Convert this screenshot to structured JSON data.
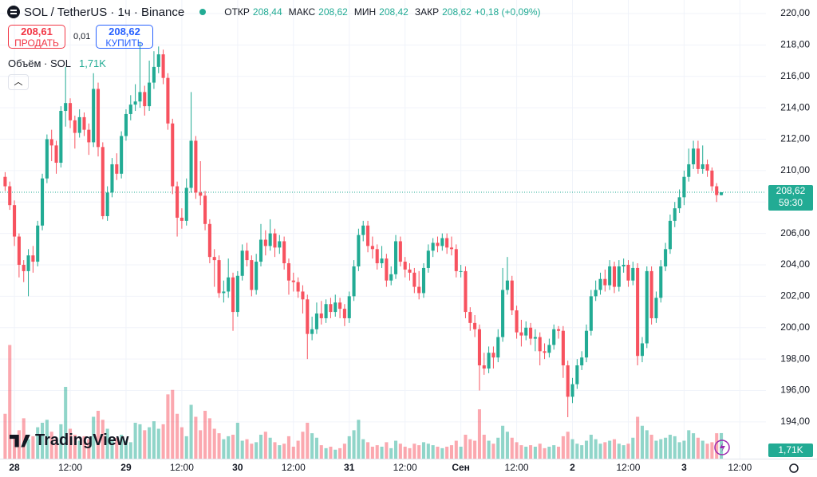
{
  "chart_data": {
    "type": "candlestick",
    "title": "SOL / TetherUS · 1ч · Binance",
    "header": {
      "ohlc": [
        {
          "label": "ОТКР",
          "value": "208,44"
        },
        {
          "label": "МАКС",
          "value": "208,62"
        },
        {
          "label": "МИН",
          "value": "208,42"
        },
        {
          "label": "ЗАКР",
          "value": "208,62"
        }
      ],
      "change": "+0,18 (+0,09%)",
      "sell_price": "208,61",
      "sell_label": "ПРОДАТЬ",
      "spread": "0,01",
      "buy_price": "208,62",
      "buy_label": "КУПИТЬ",
      "volume_title": "Объём · SOL",
      "brand": "TradingView",
      "last_price_label": "208,62",
      "countdown": "59:30",
      "volume_label": "1,71K"
    },
    "colors": {
      "up": "#22ab94",
      "down": "#f7525f"
    },
    "open": [
      209.6,
      209.0,
      207.8,
      205.8,
      204.0,
      203.6,
      204.6,
      204.2,
      206.5,
      209.5,
      212.0,
      211.6,
      210.5,
      213.8,
      214.3,
      213.2,
      212.4,
      213.4,
      212.6,
      211.8,
      215.2,
      211.5,
      207.1,
      208.6,
      210.4,
      209.8,
      212.2,
      213.6,
      214.2,
      214.4,
      215.0,
      214.1,
      215.6,
      216.6,
      217.4,
      215.9,
      213.0,
      209.0,
      207.0,
      206.8,
      208.9,
      211.9,
      208.6,
      208.4,
      206.6,
      204.5,
      204.3,
      202.2,
      202.3,
      203.2,
      201.0,
      203.3,
      204.9,
      204.3,
      202.4,
      204.2,
      205.6,
      205.2,
      206.0,
      205.1,
      205.5,
      204.1,
      203.0,
      202.9,
      202.3,
      201.8,
      199.6,
      199.9,
      200.9,
      200.6,
      201.5,
      201.0,
      201.6,
      201.2,
      200.6,
      202.0,
      203.9,
      205.9,
      206.5,
      205.2,
      205.0,
      204.1,
      204.4,
      203.0,
      203.4,
      205.5,
      204.2,
      203.7,
      203.5,
      202.6,
      202.2,
      203.8,
      204.9,
      205.4,
      205.2,
      205.7,
      205.1,
      205.0,
      203.6,
      203.6,
      201.0,
      200.3,
      199.9,
      197.6,
      197.4,
      198.4,
      198.1,
      199.4,
      202.4,
      203.0,
      201.1,
      199.7,
      199.5,
      200.0,
      199.3,
      199.4,
      198.5,
      198.4,
      198.9,
      199.9,
      199.8,
      197.6,
      195.6,
      196.4,
      197.6,
      198.1,
      199.8,
      202.0,
      202.4,
      203.1,
      202.7,
      203.9,
      202.6,
      203.9,
      204.0,
      203.0,
      203.8,
      198.2,
      199.0,
      203.6,
      200.6,
      201.9,
      203.9,
      205.0,
      206.8,
      207.6,
      208.3,
      209.6,
      210.4,
      211.4,
      210.1,
      210.4,
      210.0,
      209.0,
      208.44
    ],
    "high": [
      209.9,
      209.3,
      208.1,
      206.0,
      204.3,
      205.0,
      205.2,
      206.8,
      209.8,
      212.3,
      212.6,
      211.9,
      214.1,
      216.6,
      214.6,
      213.5,
      213.9,
      213.7,
      213.0,
      216.2,
      215.6,
      211.8,
      209.0,
      210.8,
      211.1,
      212.5,
      213.9,
      214.8,
      215.5,
      218.2,
      215.4,
      217.0,
      217.6,
      217.9,
      217.7,
      216.2,
      213.3,
      209.3,
      207.6,
      209.5,
      215.0,
      212.2,
      210.6,
      208.7,
      206.9,
      205.0,
      204.6,
      203.0,
      204.4,
      203.5,
      203.6,
      205.3,
      205.4,
      204.6,
      204.7,
      206.6,
      206.2,
      206.9,
      206.3,
      205.9,
      205.8,
      204.4,
      203.5,
      203.2,
      202.7,
      202.1,
      200.7,
      201.6,
      201.7,
      201.8,
      201.9,
      202.1,
      201.9,
      201.5,
      202.3,
      204.3,
      206.3,
      206.8,
      206.8,
      205.8,
      205.3,
      205.2,
      204.7,
      203.9,
      205.9,
      205.8,
      204.5,
      204.1,
      203.8,
      203.6,
      204.1,
      205.3,
      205.7,
      205.8,
      206.0,
      206.0,
      205.8,
      205.3,
      204.0,
      203.9,
      201.3,
      200.8,
      200.2,
      198.4,
      198.8,
      198.8,
      199.9,
      203.8,
      204.5,
      203.3,
      201.4,
      200.5,
      200.4,
      200.3,
      199.9,
      199.7,
      199.0,
      199.3,
      200.2,
      200.1,
      200.1,
      197.9,
      196.8,
      198.0,
      198.5,
      200.2,
      202.4,
      203.0,
      203.5,
      203.7,
      204.3,
      204.2,
      204.3,
      204.4,
      204.3,
      204.2,
      204.1,
      199.4,
      203.9,
      203.9,
      202.3,
      204.3,
      205.4,
      207.2,
      208.0,
      208.8,
      210.0,
      211.4,
      211.9,
      211.9,
      211.6,
      210.7,
      210.2,
      209.2,
      208.62
    ],
    "low": [
      208.7,
      207.5,
      205.2,
      203.2,
      202.9,
      202.0,
      203.5,
      203.9,
      206.2,
      209.2,
      210.6,
      209.8,
      210.2,
      212.8,
      212.7,
      211.4,
      212.1,
      212.2,
      211.0,
      211.5,
      210.9,
      206.9,
      206.8,
      208.3,
      209.4,
      209.5,
      211.9,
      213.2,
      213.8,
      214.0,
      213.5,
      213.8,
      215.2,
      216.2,
      215.5,
      212.6,
      208.5,
      205.8,
      206.3,
      206.5,
      208.6,
      208.2,
      207.8,
      206.2,
      204.1,
      202.6,
      201.9,
      201.6,
      201.9,
      199.8,
      200.7,
      203.0,
      203.9,
      202.0,
      202.1,
      203.9,
      204.6,
      204.9,
      204.5,
      204.7,
      203.7,
      202.1,
      202.3,
      201.9,
      200.9,
      198.0,
      199.2,
      199.6,
      200.2,
      200.3,
      200.6,
      200.7,
      200.6,
      200.1,
      200.3,
      201.7,
      203.6,
      205.5,
      204.8,
      204.4,
      203.7,
      203.8,
      202.6,
      202.7,
      203.1,
      203.9,
      203.2,
      203.0,
      202.2,
      201.8,
      201.9,
      203.5,
      204.5,
      204.8,
      204.9,
      204.7,
      204.6,
      203.2,
      203.2,
      200.6,
      199.8,
      199.4,
      196.0,
      197.0,
      197.1,
      197.4,
      197.8,
      199.1,
      202.1,
      200.8,
      199.3,
      198.8,
      199.2,
      198.9,
      198.5,
      197.6,
      198.0,
      198.1,
      198.6,
      199.3,
      196.8,
      194.3,
      195.2,
      196.1,
      197.3,
      197.8,
      199.5,
      201.7,
      202.1,
      202.3,
      202.4,
      202.2,
      202.3,
      203.5,
      202.6,
      202.7,
      197.6,
      197.8,
      198.7,
      200.2,
      200.3,
      201.6,
      203.6,
      204.7,
      206.4,
      207.3,
      207.8,
      209.3,
      210.1,
      209.8,
      209.8,
      209.6,
      208.7,
      208.0,
      208.42
    ],
    "close": [
      209.0,
      207.8,
      205.8,
      204.0,
      203.6,
      204.6,
      204.2,
      206.5,
      209.5,
      212.0,
      211.6,
      210.5,
      213.8,
      214.3,
      213.2,
      212.4,
      213.4,
      212.6,
      211.8,
      215.2,
      211.5,
      207.1,
      208.6,
      210.4,
      209.8,
      212.2,
      213.6,
      214.2,
      214.4,
      215.0,
      214.1,
      215.6,
      216.6,
      217.4,
      215.9,
      213.0,
      209.0,
      207.0,
      206.8,
      208.9,
      211.9,
      208.6,
      208.4,
      206.6,
      204.5,
      204.3,
      202.2,
      202.3,
      203.2,
      201.0,
      203.3,
      204.9,
      204.3,
      202.4,
      204.2,
      205.6,
      205.2,
      206.0,
      205.1,
      205.5,
      204.1,
      203.0,
      202.9,
      202.3,
      201.8,
      199.6,
      199.9,
      200.9,
      200.6,
      201.5,
      201.0,
      201.6,
      201.2,
      200.6,
      202.0,
      203.9,
      205.9,
      206.5,
      205.2,
      205.0,
      204.1,
      204.4,
      203.0,
      203.4,
      205.5,
      204.2,
      203.7,
      203.5,
      202.6,
      202.2,
      203.8,
      204.9,
      205.4,
      205.2,
      205.7,
      205.1,
      205.0,
      203.6,
      203.6,
      201.0,
      200.3,
      199.9,
      197.6,
      197.4,
      198.4,
      198.1,
      199.4,
      202.4,
      203.0,
      201.1,
      199.7,
      199.5,
      200.0,
      199.3,
      199.4,
      198.5,
      198.4,
      198.9,
      199.9,
      199.8,
      197.6,
      195.6,
      196.4,
      197.6,
      198.1,
      199.8,
      202.0,
      202.4,
      203.1,
      202.7,
      203.9,
      202.6,
      203.9,
      204.0,
      203.0,
      203.8,
      198.2,
      199.0,
      203.6,
      200.6,
      201.9,
      203.9,
      205.0,
      206.8,
      207.6,
      208.3,
      209.6,
      210.4,
      211.4,
      210.1,
      210.4,
      210.0,
      209.0,
      208.44,
      208.62
    ],
    "volume": [
      3.0,
      7.6,
      1.6,
      1.9,
      2.7,
      1.3,
      1.5,
      2.1,
      2.4,
      2.6,
      1.8,
      1.4,
      2.3,
      4.8,
      2.0,
      1.6,
      1.2,
      1.5,
      1.3,
      2.8,
      3.2,
      2.6,
      2.0,
      1.3,
      1.4,
      1.6,
      1.2,
      1.1,
      2.4,
      2.3,
      1.9,
      2.1,
      2.5,
      2.0,
      2.3,
      4.3,
      4.6,
      3.0,
      2.1,
      1.5,
      3.6,
      2.8,
      1.9,
      3.2,
      2.7,
      2.0,
      1.7,
      1.3,
      1.5,
      1.6,
      2.4,
      1.2,
      1.3,
      1.0,
      1.1,
      1.6,
      1.8,
      1.4,
      1.1,
      0.9,
      1.0,
      1.5,
      0.8,
      1.2,
      1.8,
      2.4,
      1.7,
      1.4,
      0.9,
      0.7,
      0.8,
      0.6,
      0.7,
      1.0,
      1.5,
      1.9,
      2.6,
      1.3,
      1.1,
      0.8,
      0.9,
      0.8,
      1.1,
      0.7,
      1.2,
      1.0,
      0.8,
      0.7,
      1.0,
      0.9,
      1.1,
      1.0,
      0.9,
      0.8,
      0.7,
      0.8,
      0.9,
      1.2,
      0.8,
      1.6,
      1.3,
      1.2,
      3.3,
      1.6,
      1.2,
      1.0,
      1.4,
      2.2,
      1.8,
      1.4,
      1.1,
      0.9,
      0.8,
      0.9,
      0.8,
      1.0,
      0.7,
      0.8,
      0.9,
      0.8,
      1.5,
      1.8,
      1.3,
      1.0,
      0.9,
      1.2,
      1.6,
      1.3,
      1.0,
      1.1,
      1.2,
      1.3,
      1.0,
      0.9,
      1.0,
      1.4,
      2.8,
      2.2,
      1.9,
      1.6,
      1.2,
      1.3,
      1.4,
      1.6,
      1.5,
      1.1,
      1.2,
      1.9,
      1.7,
      1.4,
      1.2,
      1.0,
      1.1,
      1.7,
      1.71
    ],
    "volume_ylim": [
      0,
      8
    ],
    "xlim": [
      -1.1,
      163.6
    ],
    "ylim": [
      191.66,
      220.86
    ],
    "yticks": [
      {
        "value": 194,
        "label": "194,00"
      },
      {
        "value": 196,
        "label": "196,00"
      },
      {
        "value": 198,
        "label": "198,00"
      },
      {
        "value": 200,
        "label": "200,00"
      },
      {
        "value": 202,
        "label": "202,00"
      },
      {
        "value": 204,
        "label": "204,00"
      },
      {
        "value": 206,
        "label": "206,00"
      },
      {
        "value": 208,
        "label": "208,00"
      },
      {
        "value": 210,
        "label": "210,00"
      },
      {
        "value": 212,
        "label": "212,00"
      },
      {
        "value": 214,
        "label": "214,00"
      },
      {
        "value": 216,
        "label": "216,00"
      },
      {
        "value": 218,
        "label": "218,00"
      },
      {
        "value": 220,
        "label": "220,00"
      }
    ],
    "xticks": [
      {
        "value": 2,
        "label": "28"
      },
      {
        "value": 14,
        "label": "12:00"
      },
      {
        "value": 26,
        "label": "29"
      },
      {
        "value": 38,
        "label": "12:00"
      },
      {
        "value": 50,
        "label": "30"
      },
      {
        "value": 62,
        "label": "12:00"
      },
      {
        "value": 74,
        "label": "31"
      },
      {
        "value": 86,
        "label": "12:00"
      },
      {
        "value": 98,
        "label": "Сен"
      },
      {
        "value": 110,
        "label": "12:00"
      },
      {
        "value": 122,
        "label": "2"
      },
      {
        "value": 134,
        "label": "12:00"
      },
      {
        "value": 146,
        "label": "3"
      },
      {
        "value": 158,
        "label": "12:00"
      }
    ],
    "grid": true
  }
}
